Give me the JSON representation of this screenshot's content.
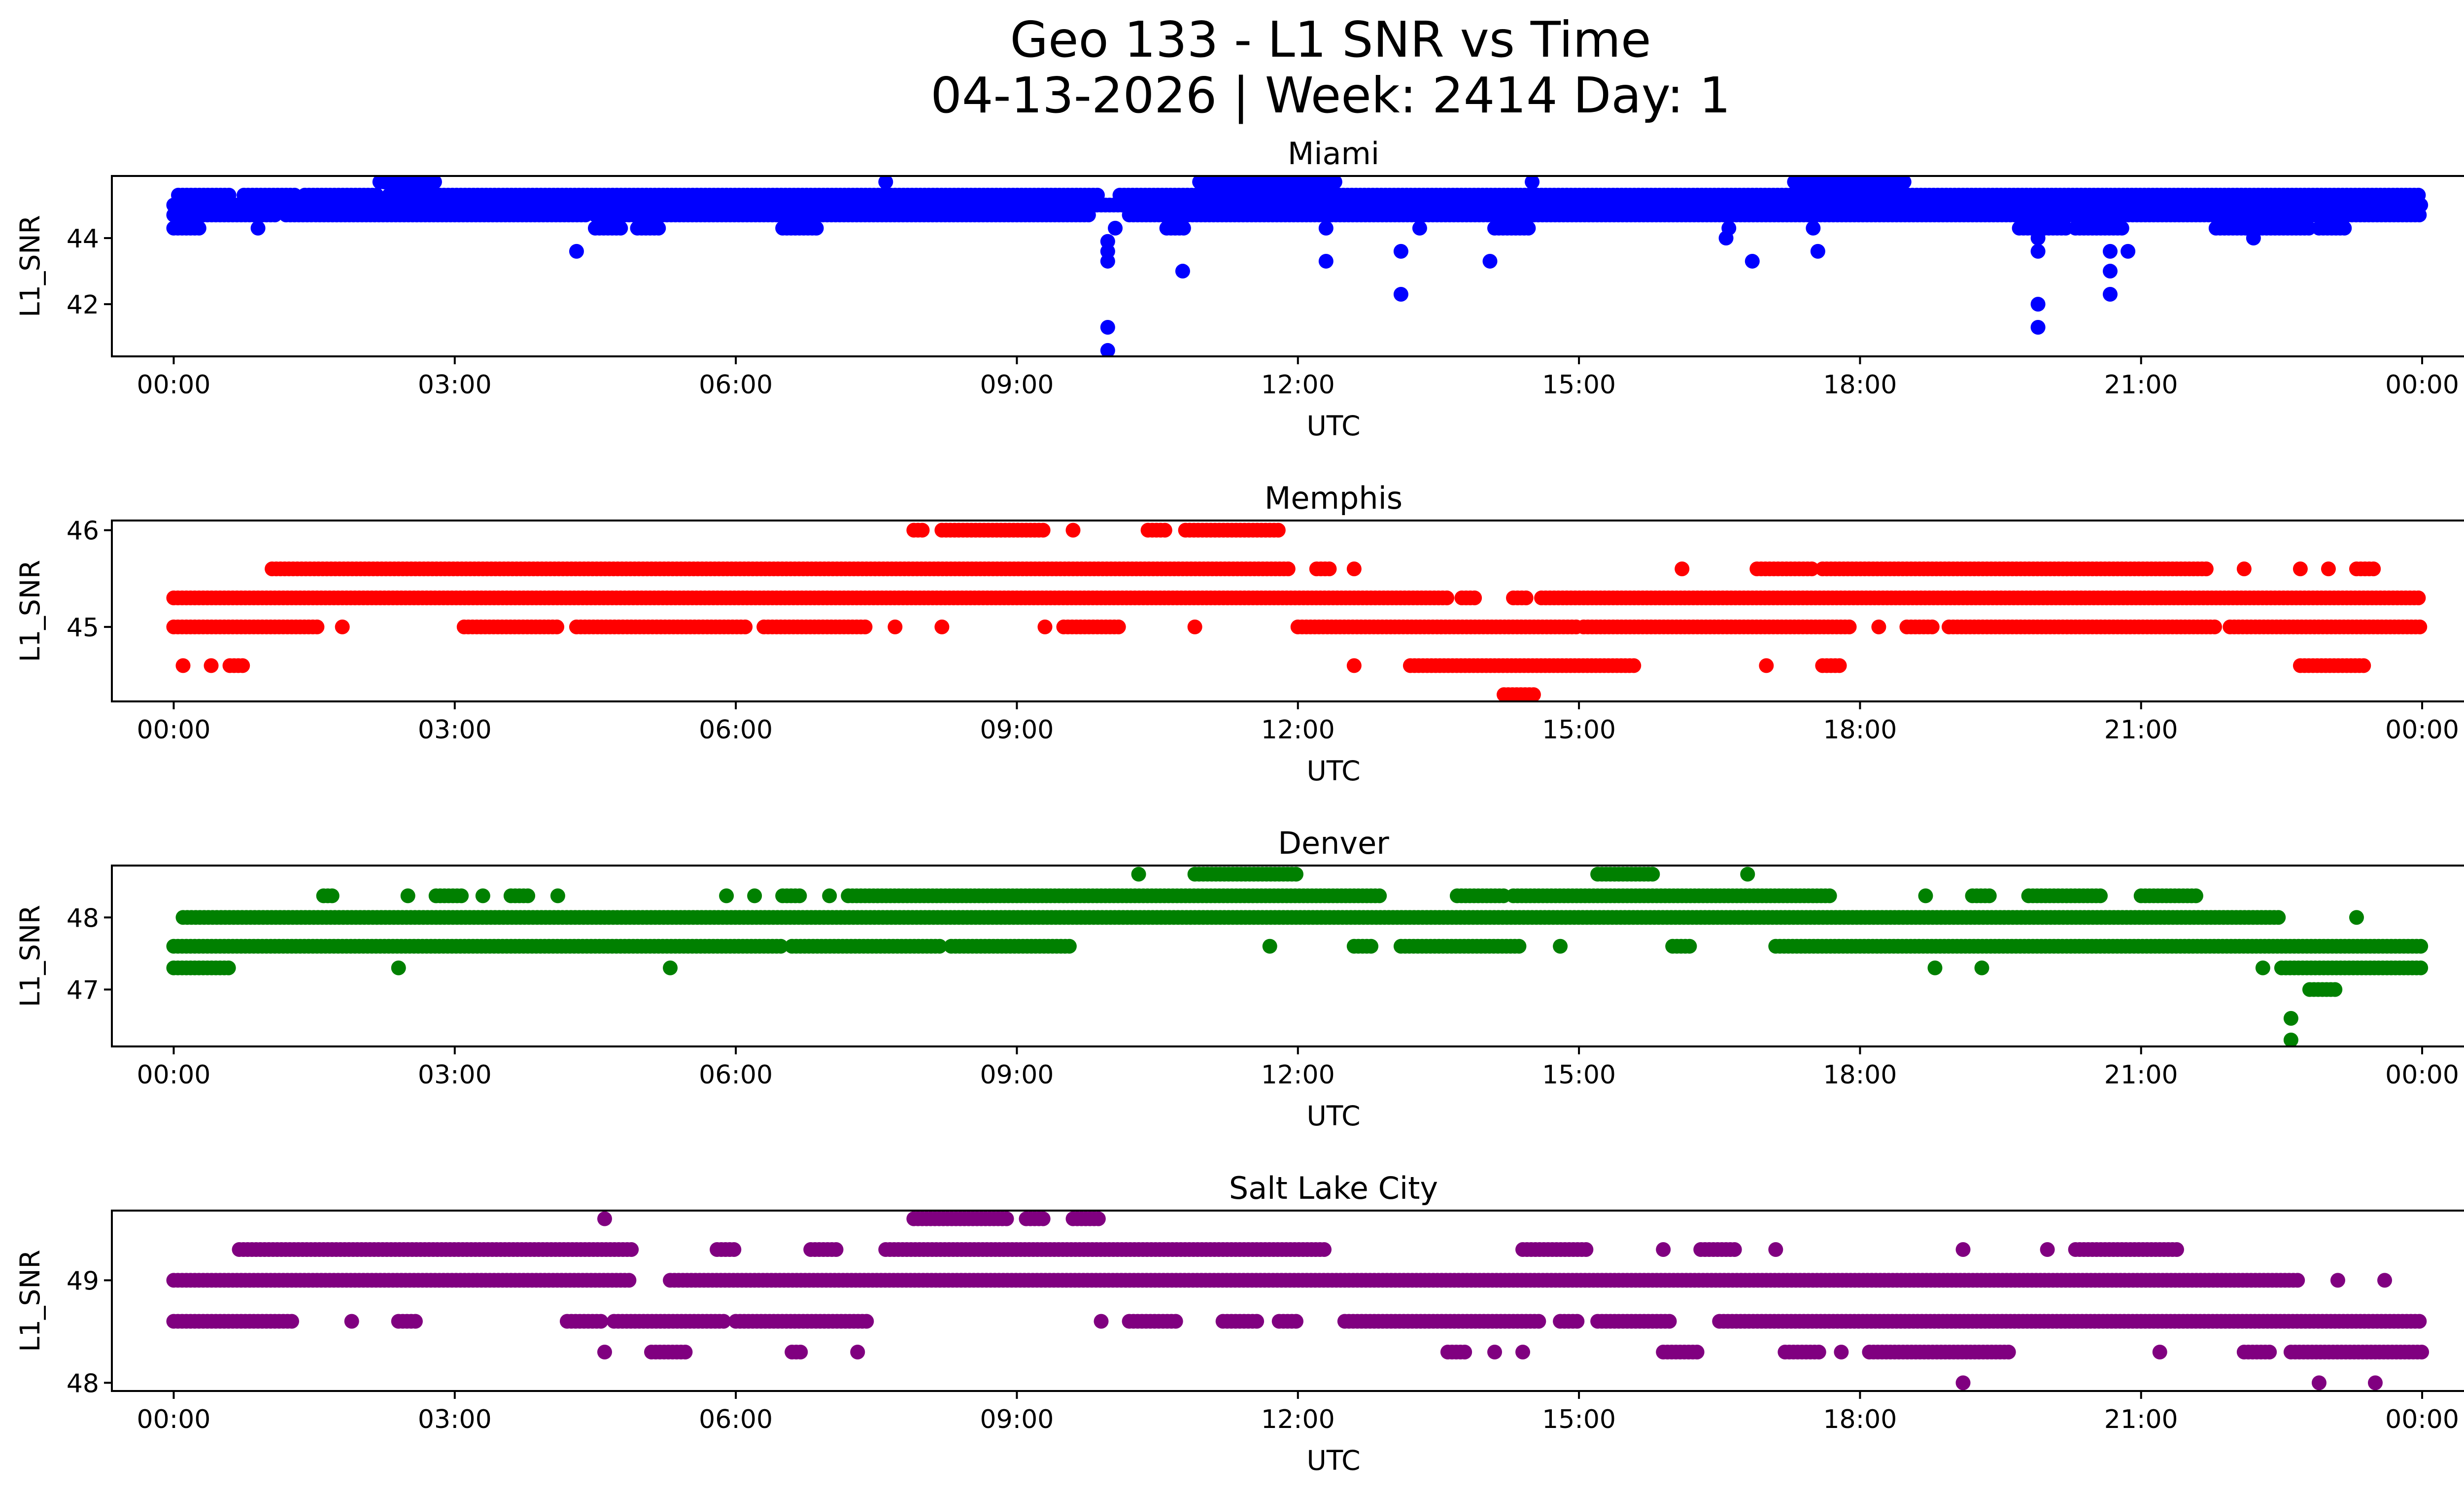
{
  "figure": {
    "title_line1": "Geo 133 - L1 SNR vs Time",
    "title_line2": "04-13-2026 | Week: 2414 Day: 1"
  },
  "chart_data": [
    {
      "type": "scatter",
      "title": "Miami",
      "xlabel": "UTC",
      "ylabel": "L1_SNR",
      "color": "#0000ff",
      "xlim_hours": [
        -0.66,
        25.42
      ],
      "ylim": [
        40.42,
        45.88
      ],
      "xticks": [
        {
          "hour": 0,
          "label": "00:00"
        },
        {
          "hour": 3,
          "label": "03:00"
        },
        {
          "hour": 6,
          "label": "06:00"
        },
        {
          "hour": 9,
          "label": "09:00"
        },
        {
          "hour": 12,
          "label": "12:00"
        },
        {
          "hour": 15,
          "label": "15:00"
        },
        {
          "hour": 18,
          "label": "18:00"
        },
        {
          "hour": 21,
          "label": "21:00"
        },
        {
          "hour": 24,
          "label": "00:00"
        }
      ],
      "yticks": [
        {
          "value": 42,
          "label": "42"
        },
        {
          "value": 44,
          "label": "44"
        }
      ],
      "levels": [
        {
          "snr": 45.3,
          "runs": [
            [
              0.05,
              0.6
            ],
            [
              0.75,
              1.3
            ],
            [
              1.4,
              2.2
            ],
            [
              2.3,
              9.9
            ],
            [
              10.1,
              24
            ]
          ]
        },
        {
          "snr": 45.0,
          "runs": [
            [
              0,
              24
            ]
          ]
        },
        {
          "snr": 44.7,
          "runs": [
            [
              0,
              1.1
            ],
            [
              1.2,
              4.4
            ],
            [
              4.5,
              9.8
            ],
            [
              10.2,
              24
            ]
          ]
        },
        {
          "snr": 44.3,
          "runs": [
            [
              0,
              0.3
            ],
            [
              0.9,
              0.9
            ],
            [
              4.5,
              4.8
            ],
            [
              4.95,
              5.2
            ],
            [
              6.5,
              6.9
            ],
            [
              10.05,
              10.05
            ],
            [
              10.6,
              10.8
            ],
            [
              12.3,
              12.3
            ],
            [
              13.3,
              13.3
            ],
            [
              14.1,
              14.5
            ],
            [
              16.6,
              16.6
            ],
            [
              17.5,
              17.5
            ],
            [
              19.7,
              20.2
            ],
            [
              20.3,
              20.8
            ],
            [
              21.8,
              22.8
            ],
            [
              22.9,
              23.2
            ]
          ]
        },
        {
          "snr": 45.7,
          "runs": [
            [
              2.2,
              2.8
            ],
            [
              7.6,
              7.6
            ],
            [
              11.0,
              12.4
            ],
            [
              17.3,
              18.5
            ],
            [
              10.95,
              10.95
            ],
            [
              14.5,
              14.5
            ]
          ]
        }
      ],
      "points": [
        {
          "t": 4.3,
          "snr": 43.6
        },
        {
          "t": 9.97,
          "snr": 43.9
        },
        {
          "t": 9.97,
          "snr": 43.6
        },
        {
          "t": 9.97,
          "snr": 43.3
        },
        {
          "t": 9.97,
          "snr": 41.3
        },
        {
          "t": 9.97,
          "snr": 40.6
        },
        {
          "t": 10.77,
          "snr": 43.0
        },
        {
          "t": 12.3,
          "snr": 43.3
        },
        {
          "t": 13.1,
          "snr": 43.6
        },
        {
          "t": 13.1,
          "snr": 42.3
        },
        {
          "t": 14.05,
          "snr": 43.3
        },
        {
          "t": 16.57,
          "snr": 44.0
        },
        {
          "t": 16.85,
          "snr": 43.3
        },
        {
          "t": 17.55,
          "snr": 43.6
        },
        {
          "t": 19.9,
          "snr": 44.0
        },
        {
          "t": 19.9,
          "snr": 43.6
        },
        {
          "t": 19.9,
          "snr": 42.0
        },
        {
          "t": 19.9,
          "snr": 41.3
        },
        {
          "t": 20.67,
          "snr": 43.6
        },
        {
          "t": 20.67,
          "snr": 43.0
        },
        {
          "t": 20.67,
          "snr": 42.3
        },
        {
          "t": 20.86,
          "snr": 43.6
        },
        {
          "t": 22.2,
          "snr": 44.0
        }
      ]
    },
    {
      "type": "scatter",
      "title": "Memphis",
      "xlabel": "UTC",
      "ylabel": "L1_SNR",
      "color": "#ff0000",
      "xlim_hours": [
        -0.66,
        25.42
      ],
      "ylim": [
        44.23,
        46.1
      ],
      "xticks": [
        {
          "hour": 0,
          "label": "00:00"
        },
        {
          "hour": 3,
          "label": "03:00"
        },
        {
          "hour": 6,
          "label": "06:00"
        },
        {
          "hour": 9,
          "label": "09:00"
        },
        {
          "hour": 12,
          "label": "12:00"
        },
        {
          "hour": 15,
          "label": "15:00"
        },
        {
          "hour": 18,
          "label": "18:00"
        },
        {
          "hour": 21,
          "label": "21:00"
        },
        {
          "hour": 24,
          "label": "00:00"
        }
      ],
      "yticks": [
        {
          "value": 45,
          "label": "45"
        },
        {
          "value": 46,
          "label": "46"
        }
      ],
      "levels": [
        {
          "snr": 46.0,
          "runs": [
            [
              7.9,
              8.0
            ],
            [
              8.2,
              9.3
            ],
            [
              9.6,
              9.6
            ],
            [
              10.4,
              10.6
            ],
            [
              10.8,
              11.8
            ]
          ]
        },
        {
          "snr": 45.6,
          "runs": [
            [
              1.05,
              11.9
            ],
            [
              12.2,
              12.35
            ],
            [
              12.6,
              12.6
            ],
            [
              16.1,
              16.1
            ],
            [
              16.9,
              17.5
            ],
            [
              17.6,
              21.7
            ],
            [
              22.1,
              22.1
            ],
            [
              22.7,
              22.7
            ],
            [
              23.0,
              23.0
            ],
            [
              23.3,
              23.5
            ]
          ]
        },
        {
          "snr": 45.3,
          "runs": [
            [
              0,
              13.6
            ],
            [
              13.75,
              13.9
            ],
            [
              14.3,
              14.45
            ],
            [
              14.6,
              24
            ]
          ]
        },
        {
          "snr": 45.0,
          "runs": [
            [
              0,
              1.55
            ],
            [
              1.8,
              1.8
            ],
            [
              3.1,
              4.1
            ],
            [
              4.3,
              6.1
            ],
            [
              6.3,
              7.4
            ],
            [
              7.7,
              7.7
            ],
            [
              8.2,
              8.2
            ],
            [
              9.3,
              9.3
            ],
            [
              9.5,
              10.1
            ],
            [
              10.9,
              10.9
            ],
            [
              12.0,
              15.0
            ],
            [
              15.05,
              17.9
            ],
            [
              18.2,
              18.2
            ],
            [
              18.5,
              18.8
            ],
            [
              18.95,
              21.8
            ],
            [
              21.95,
              24
            ]
          ]
        },
        {
          "snr": 44.6,
          "runs": [
            [
              0.1,
              0.1
            ],
            [
              0.4,
              0.4
            ],
            [
              0.6,
              0.75
            ],
            [
              12.6,
              12.6
            ],
            [
              13.2,
              15.6
            ],
            [
              17.0,
              17.0
            ],
            [
              17.6,
              17.8
            ],
            [
              22.7,
              23.4
            ]
          ]
        },
        {
          "snr": 44.3,
          "runs": [
            [
              14.2,
              14.55
            ]
          ]
        }
      ],
      "points": []
    },
    {
      "type": "scatter",
      "title": "Denver",
      "xlabel": "UTC",
      "ylabel": "L1_SNR",
      "color": "#008000",
      "xlim_hours": [
        -0.66,
        25.42
      ],
      "ylim": [
        46.21,
        48.72
      ],
      "xticks": [
        {
          "hour": 0,
          "label": "00:00"
        },
        {
          "hour": 3,
          "label": "03:00"
        },
        {
          "hour": 6,
          "label": "06:00"
        },
        {
          "hour": 9,
          "label": "09:00"
        },
        {
          "hour": 12,
          "label": "12:00"
        },
        {
          "hour": 15,
          "label": "15:00"
        },
        {
          "hour": 18,
          "label": "18:00"
        },
        {
          "hour": 21,
          "label": "21:00"
        },
        {
          "hour": 24,
          "label": "00:00"
        }
      ],
      "yticks": [
        {
          "value": 47,
          "label": "47"
        },
        {
          "value": 48,
          "label": "48"
        }
      ],
      "levels": [
        {
          "snr": 48.6,
          "runs": [
            [
              10.3,
              10.3
            ],
            [
              10.9,
              12.0
            ],
            [
              15.2,
              15.8
            ],
            [
              16.8,
              16.8
            ]
          ]
        },
        {
          "snr": 48.3,
          "runs": [
            [
              1.6,
              1.7
            ],
            [
              2.5,
              2.5
            ],
            [
              2.8,
              3.1
            ],
            [
              3.3,
              3.3
            ],
            [
              3.6,
              3.8
            ],
            [
              4.1,
              4.1
            ],
            [
              5.9,
              5.9
            ],
            [
              6.2,
              6.2
            ],
            [
              6.5,
              6.7
            ],
            [
              7.0,
              7.0
            ],
            [
              7.2,
              12.9
            ],
            [
              13.7,
              14.2
            ],
            [
              14.3,
              17.7
            ],
            [
              18.7,
              18.7
            ],
            [
              19.2,
              19.4
            ],
            [
              19.8,
              20.6
            ],
            [
              21.0,
              21.6
            ]
          ]
        },
        {
          "snr": 48.0,
          "runs": [
            [
              0.1,
              22.5
            ],
            [
              23.3,
              23.3
            ]
          ]
        },
        {
          "snr": 47.6,
          "runs": [
            [
              0,
              6.5
            ],
            [
              6.6,
              8.2
            ],
            [
              8.3,
              9.6
            ],
            [
              11.7,
              11.7
            ],
            [
              12.6,
              12.8
            ],
            [
              13.1,
              14.4
            ],
            [
              14.8,
              14.8
            ],
            [
              16.0,
              16.2
            ],
            [
              17.1,
              24
            ]
          ]
        },
        {
          "snr": 47.3,
          "runs": [
            [
              0,
              0.6
            ],
            [
              2.4,
              2.4
            ],
            [
              5.3,
              5.3
            ],
            [
              18.8,
              18.8
            ],
            [
              19.3,
              19.3
            ],
            [
              22.3,
              22.3
            ],
            [
              22.5,
              24
            ]
          ]
        },
        {
          "snr": 47.0,
          "runs": [
            [
              22.8,
              23.1
            ]
          ]
        }
      ],
      "points": [
        {
          "t": 22.6,
          "snr": 46.6
        },
        {
          "t": 22.6,
          "snr": 46.3
        }
      ]
    },
    {
      "type": "scatter",
      "title": "Salt Lake City",
      "xlabel": "UTC",
      "ylabel": "L1_SNR",
      "color": "#800080",
      "xlim_hours": [
        -0.66,
        25.42
      ],
      "ylim": [
        47.92,
        49.68
      ],
      "xticks": [
        {
          "hour": 0,
          "label": "00:00"
        },
        {
          "hour": 3,
          "label": "03:00"
        },
        {
          "hour": 6,
          "label": "06:00"
        },
        {
          "hour": 9,
          "label": "09:00"
        },
        {
          "hour": 12,
          "label": "12:00"
        },
        {
          "hour": 15,
          "label": "15:00"
        },
        {
          "hour": 18,
          "label": "18:00"
        },
        {
          "hour": 21,
          "label": "21:00"
        },
        {
          "hour": 24,
          "label": "00:00"
        }
      ],
      "yticks": [
        {
          "value": 48,
          "label": "48"
        },
        {
          "value": 49,
          "label": "49"
        }
      ],
      "levels": [
        {
          "snr": 49.6,
          "runs": [
            [
              4.6,
              4.6
            ],
            [
              7.9,
              8.9
            ],
            [
              9.1,
              9.3
            ],
            [
              9.6,
              9.9
            ]
          ]
        },
        {
          "snr": 49.3,
          "runs": [
            [
              0.7,
              4.9
            ],
            [
              5.8,
              6.0
            ],
            [
              6.8,
              7.1
            ],
            [
              7.6,
              12.3
            ],
            [
              14.4,
              15.1
            ],
            [
              15.9,
              15.9
            ],
            [
              16.3,
              16.7
            ],
            [
              17.1,
              17.1
            ],
            [
              19.1,
              19.1
            ],
            [
              20.0,
              20.0
            ],
            [
              20.3,
              21.4
            ]
          ]
        },
        {
          "snr": 49.0,
          "runs": [
            [
              0,
              4.9
            ],
            [
              5.3,
              22.7
            ],
            [
              23.1,
              23.1
            ],
            [
              23.6,
              23.6
            ]
          ]
        },
        {
          "snr": 48.6,
          "runs": [
            [
              0,
              1.3
            ],
            [
              1.9,
              1.9
            ],
            [
              2.4,
              2.6
            ],
            [
              4.2,
              4.6
            ],
            [
              4.7,
              5.9
            ],
            [
              6.0,
              7.4
            ],
            [
              9.9,
              9.9
            ],
            [
              10.2,
              10.7
            ],
            [
              11.2,
              11.6
            ],
            [
              11.8,
              12.0
            ],
            [
              12.5,
              14.6
            ],
            [
              14.8,
              15.0
            ],
            [
              15.2,
              16.0
            ],
            [
              16.5,
              24
            ]
          ]
        },
        {
          "snr": 48.3,
          "runs": [
            [
              4.6,
              4.6
            ],
            [
              5.1,
              5.5
            ],
            [
              6.6,
              6.7
            ],
            [
              7.3,
              7.3
            ],
            [
              13.6,
              13.8
            ],
            [
              14.1,
              14.1
            ],
            [
              14.4,
              14.4
            ],
            [
              15.9,
              16.3
            ],
            [
              17.2,
              17.6
            ],
            [
              17.8,
              17.8
            ],
            [
              18.1,
              19.6
            ],
            [
              21.2,
              21.2
            ],
            [
              22.1,
              22.4
            ],
            [
              22.6,
              24
            ]
          ]
        },
        {
          "snr": 48.0,
          "runs": [
            [
              19.1,
              19.1
            ],
            [
              22.9,
              22.9
            ],
            [
              23.5,
              23.5
            ]
          ]
        }
      ],
      "points": []
    }
  ]
}
